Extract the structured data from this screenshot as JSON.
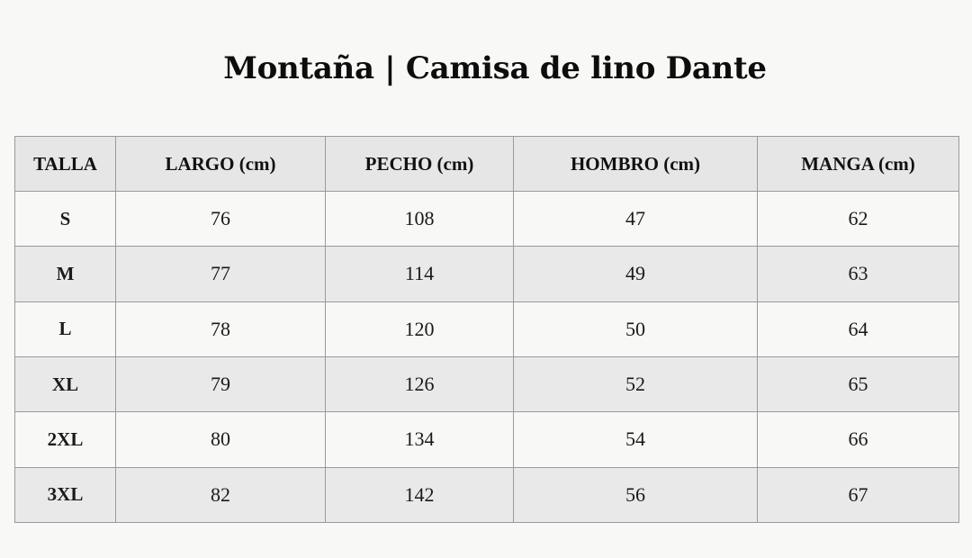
{
  "title": "Montaña | Camisa de lino Dante",
  "table": {
    "headers": [
      "TALLA",
      "LARGO (cm)",
      "PECHO (cm)",
      "HOMBRO (cm)",
      "MANGA (cm)"
    ],
    "rows": [
      [
        "S",
        "76",
        "108",
        "47",
        "62"
      ],
      [
        "M",
        "77",
        "114",
        "49",
        "63"
      ],
      [
        "L",
        "78",
        "120",
        "50",
        "64"
      ],
      [
        "XL",
        "79",
        "126",
        "52",
        "65"
      ],
      [
        "2XL",
        "80",
        "134",
        "54",
        "66"
      ],
      [
        "3XL",
        "82",
        "142",
        "56",
        "67"
      ]
    ]
  },
  "colors": {
    "background": "#f8f8f6",
    "header_bg": "#e6e6e6",
    "alt_row_bg": "#e9e9e9",
    "border": "#9a9a9a"
  }
}
